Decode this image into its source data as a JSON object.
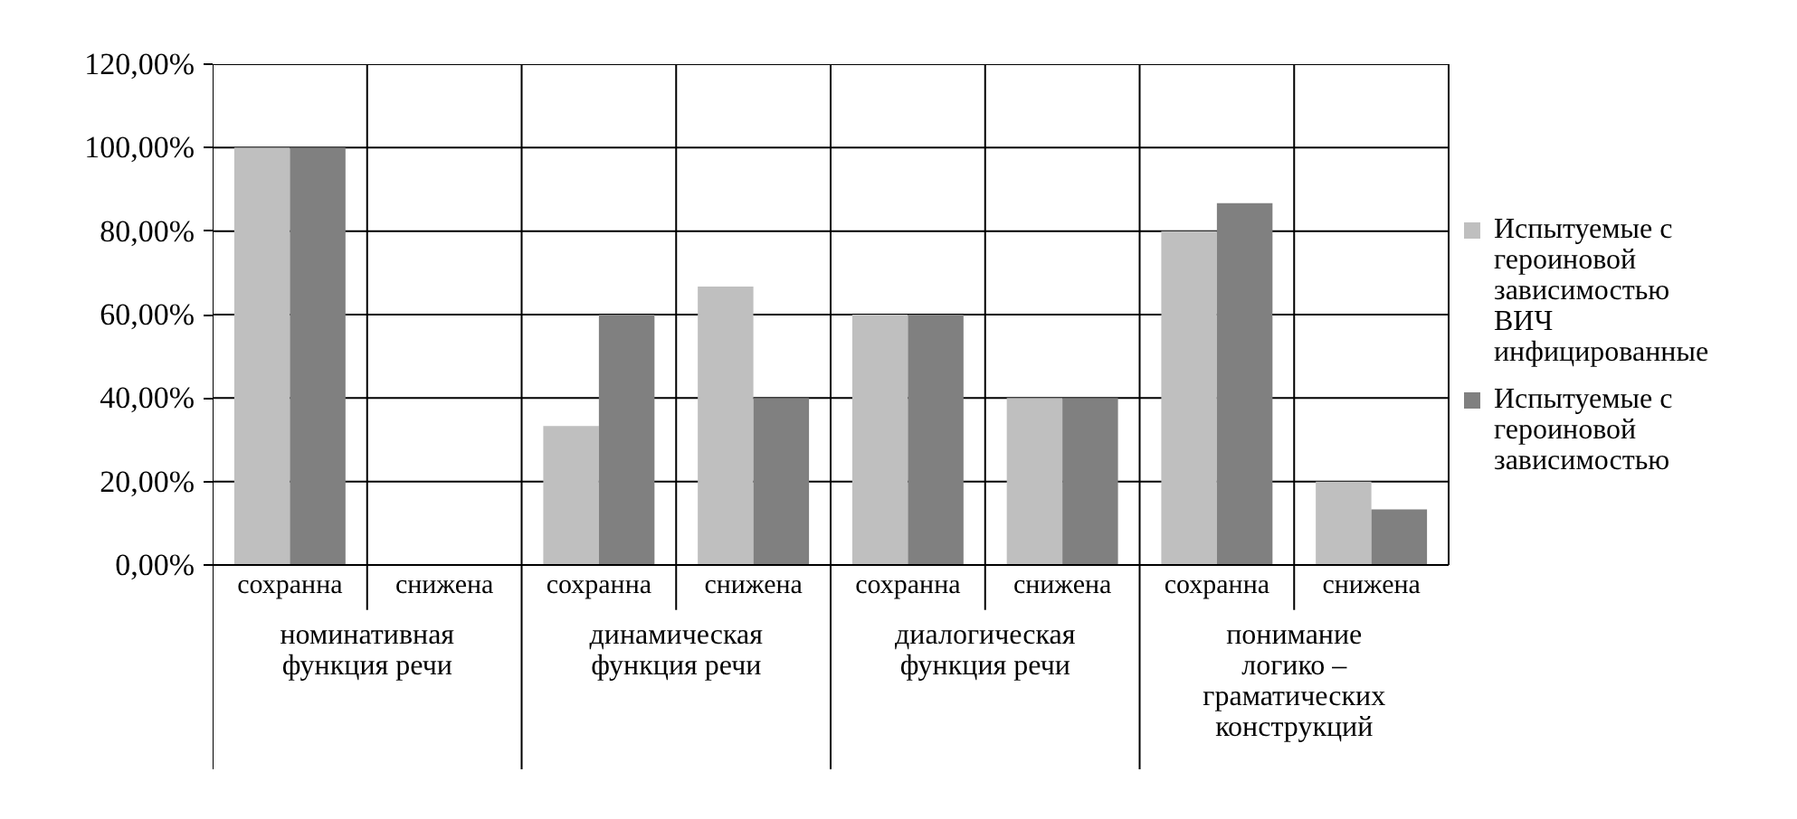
{
  "chart_data": {
    "type": "bar",
    "categories": [
      "сохранна",
      "снижена",
      "сохранна",
      "снижена",
      "сохранна",
      "снижена",
      "сохранна",
      "снижена"
    ],
    "series": [
      {
        "name": "Испытуемые с героиновой зависимостью ВИЧ инфицированные",
        "color": "#bfbfbf",
        "values": [
          100,
          0,
          33.3,
          66.7,
          60,
          40,
          80,
          20
        ]
      },
      {
        "name": "Испытуемые с героиновой зависимостью",
        "color": "#808080",
        "values": [
          100,
          0,
          60,
          40,
          60,
          40,
          86.7,
          13.3
        ]
      }
    ],
    "annotations": [
      "номинативная\nфункция речи",
      "динамическая\nфункция речи",
      "диалогическая\nфункция речи",
      "понимание\nлогико –\nграматических\nконструкций"
    ],
    "ylim": [
      0,
      120
    ],
    "yticks": [
      {
        "value": 0,
        "label": "0,00%"
      },
      {
        "value": 20,
        "label": "20,00%"
      },
      {
        "value": 40,
        "label": "40,00%"
      },
      {
        "value": 60,
        "label": "60,00%"
      },
      {
        "value": 80,
        "label": "80,00%"
      },
      {
        "value": 100,
        "label": "100,00%"
      },
      {
        "value": 120,
        "label": "120,00%"
      }
    ],
    "grid": "y",
    "legend": "right"
  }
}
